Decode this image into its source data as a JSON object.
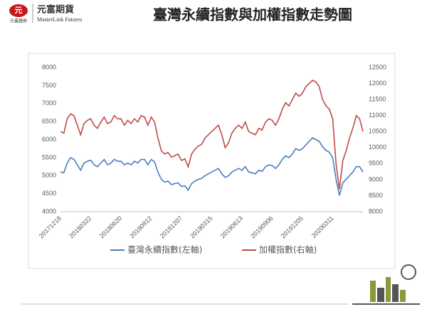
{
  "header": {
    "logo_icon": "元",
    "company": "元富期貨",
    "company_en": "MasterLink Futures",
    "sub_company": "元富證券"
  },
  "chart_data": {
    "type": "line",
    "title": "臺灣永續指數與加權指數走勢圖",
    "categories": [
      "20171218",
      null,
      null,
      null,
      null,
      null,
      null,
      null,
      null,
      "20180322",
      null,
      null,
      null,
      null,
      null,
      null,
      null,
      null,
      "20180620",
      null,
      null,
      null,
      null,
      null,
      null,
      null,
      null,
      "20180912",
      null,
      null,
      null,
      null,
      null,
      null,
      null,
      null,
      "20181207",
      null,
      null,
      null,
      null,
      null,
      null,
      null,
      null,
      "20190315",
      null,
      null,
      null,
      null,
      null,
      null,
      null,
      null,
      "20190613",
      null,
      null,
      null,
      null,
      null,
      null,
      null,
      null,
      "20190906",
      null,
      null,
      null,
      null,
      null,
      null,
      null,
      null,
      "20191205",
      null,
      null,
      null,
      null,
      null,
      null,
      null,
      null,
      "20200311",
      null,
      null,
      null,
      null,
      null,
      null,
      null,
      null,
      null
    ],
    "series": [
      {
        "name": "臺灣永續指數(左軸)",
        "color": "#4a7ebb",
        "axis": "y",
        "values": [
          5100,
          5080,
          5350,
          5500,
          5450,
          5300,
          5150,
          5350,
          5400,
          5430,
          5300,
          5250,
          5350,
          5450,
          5300,
          5350,
          5450,
          5400,
          5400,
          5300,
          5350,
          5300,
          5400,
          5350,
          5450,
          5450,
          5300,
          5450,
          5380,
          5100,
          4900,
          4820,
          4850,
          4750,
          4780,
          4800,
          4700,
          4720,
          4600,
          4780,
          4850,
          4900,
          4920,
          5000,
          5050,
          5100,
          5150,
          5200,
          5050,
          4950,
          5000,
          5100,
          5150,
          5200,
          5150,
          5250,
          5100,
          5080,
          5050,
          5150,
          5120,
          5250,
          5300,
          5280,
          5200,
          5300,
          5450,
          5550,
          5500,
          5600,
          5750,
          5700,
          5750,
          5850,
          5950,
          6050,
          6000,
          5950,
          5800,
          5700,
          5650,
          5500,
          4900,
          4450,
          4800,
          4900,
          5000,
          5100,
          5250,
          5250,
          5100
        ]
      },
      {
        "name": "加權指數(右軸)",
        "color": "#be4b48",
        "axis": "y2",
        "values": [
          10500,
          10450,
          10900,
          11050,
          11000,
          10700,
          10400,
          10750,
          10850,
          10900,
          10700,
          10600,
          10800,
          10950,
          10750,
          10800,
          11000,
          10900,
          10900,
          10700,
          10850,
          10750,
          10900,
          10800,
          11000,
          10950,
          10700,
          10950,
          10800,
          10300,
          9900,
          9800,
          9850,
          9700,
          9750,
          9800,
          9600,
          9650,
          9400,
          9800,
          9950,
          10050,
          10100,
          10300,
          10400,
          10500,
          10600,
          10700,
          10400,
          10000,
          10150,
          10450,
          10600,
          10700,
          10600,
          10800,
          10500,
          10450,
          10400,
          10600,
          10550,
          10800,
          10900,
          10850,
          10700,
          10900,
          11200,
          11400,
          11300,
          11500,
          11700,
          11600,
          11700,
          11900,
          12000,
          12100,
          12050,
          11900,
          11500,
          11300,
          11200,
          10900,
          9500,
          8700,
          9600,
          9900,
          10300,
          10600,
          11000,
          10900,
          10500
        ]
      }
    ],
    "ylim": [
      4000,
      8000
    ],
    "yticks": [
      4000,
      4500,
      5000,
      5500,
      6000,
      6500,
      7000,
      7500,
      8000
    ],
    "y2lim": [
      8000,
      12500
    ],
    "y2ticks": [
      8000,
      8500,
      9000,
      9500,
      10000,
      10500,
      11000,
      11500,
      12000,
      12500
    ],
    "grid": false,
    "legend": "bottom"
  }
}
